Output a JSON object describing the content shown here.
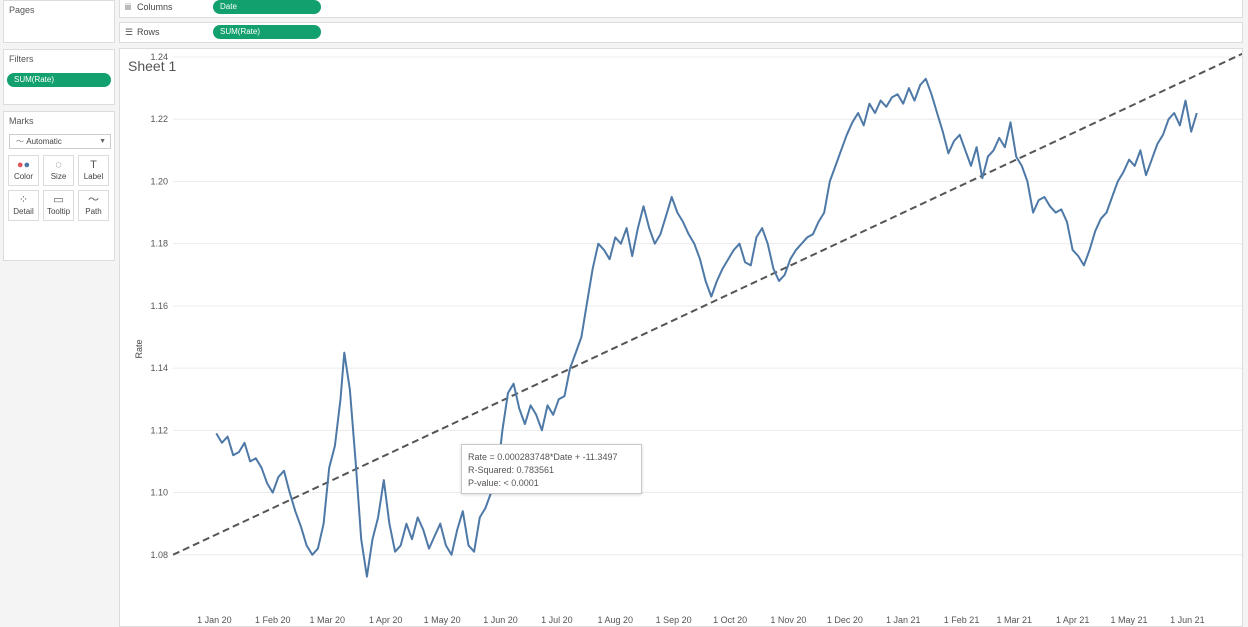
{
  "left": {
    "pages_label": "Pages",
    "filters_label": "Filters",
    "filter_pill": "SUM(Rate)",
    "marks_label": "Marks",
    "mark_type": "Automatic",
    "mark_buttons": [
      "Color",
      "Size",
      "Label",
      "Detail",
      "Tooltip",
      "Path"
    ]
  },
  "shelves": {
    "columns_label": "Columns",
    "columns_pill": "Date",
    "rows_label": "Rows",
    "rows_pill": "SUM(Rate)"
  },
  "sheet": {
    "title": "Sheet 1"
  },
  "tooltip": {
    "line1": "Rate = 0.000283748*Date + -11.3497",
    "line2": "R-Squared: 0.783561",
    "line3": "P-value: < 0.0001"
  },
  "colors": {
    "accent_pill": "#13a06f",
    "series": "#4e79a7",
    "trend": "#555555"
  },
  "chart_data": {
    "type": "line",
    "ylabel": "Rate",
    "xlabel": "",
    "ylim": [
      1.06,
      1.24
    ],
    "yticks": [
      1.08,
      1.1,
      1.12,
      1.14,
      1.16,
      1.18,
      1.2,
      1.22,
      1.24
    ],
    "ytick_labels": [
      "1.08",
      "1.10",
      "1.12",
      "1.14",
      "1.16",
      "1.18",
      "1.20",
      "1.22",
      "1.24"
    ],
    "xlim": [
      "2019-12-10",
      "2021-06-30"
    ],
    "xticks": [
      "2020-01-01",
      "2020-02-01",
      "2020-03-01",
      "2020-04-01",
      "2020-05-01",
      "2020-06-01",
      "2020-07-01",
      "2020-08-01",
      "2020-09-01",
      "2020-10-01",
      "2020-11-01",
      "2020-12-01",
      "2021-01-01",
      "2021-02-01",
      "2021-03-01",
      "2021-04-01",
      "2021-05-01",
      "2021-06-01"
    ],
    "xtick_labels": [
      "1 Jan 20",
      "1 Feb 20",
      "1 Mar 20",
      "1 Apr 20",
      "1 May 20",
      "1 Jun 20",
      "1 Jul 20",
      "1 Aug 20",
      "1 Sep 20",
      "1 Oct 20",
      "1 Nov 20",
      "1 Dec 20",
      "1 Jan 21",
      "1 Feb 21",
      "1 Mar 21",
      "1 Apr 21",
      "1 May 21",
      "1 Jun 21"
    ],
    "series": [
      {
        "x": [
          "2020-01-02",
          "2020-01-05",
          "2020-01-08",
          "2020-01-11",
          "2020-01-14",
          "2020-01-17",
          "2020-01-20",
          "2020-01-23",
          "2020-01-26",
          "2020-01-29",
          "2020-02-01",
          "2020-02-04",
          "2020-02-07",
          "2020-02-10",
          "2020-02-13",
          "2020-02-16",
          "2020-02-19",
          "2020-02-22",
          "2020-02-25",
          "2020-02-28",
          "2020-03-02",
          "2020-03-05",
          "2020-03-08",
          "2020-03-10",
          "2020-03-13",
          "2020-03-16",
          "2020-03-19",
          "2020-03-22",
          "2020-03-25",
          "2020-03-28",
          "2020-03-31",
          "2020-04-03",
          "2020-04-06",
          "2020-04-09",
          "2020-04-12",
          "2020-04-15",
          "2020-04-18",
          "2020-04-21",
          "2020-04-24",
          "2020-04-27",
          "2020-04-30",
          "2020-05-03",
          "2020-05-06",
          "2020-05-09",
          "2020-05-12",
          "2020-05-15",
          "2020-05-18",
          "2020-05-21",
          "2020-05-24",
          "2020-05-27",
          "2020-05-30",
          "2020-06-02",
          "2020-06-05",
          "2020-06-08",
          "2020-06-11",
          "2020-06-14",
          "2020-06-17",
          "2020-06-20",
          "2020-06-23",
          "2020-06-26",
          "2020-06-29",
          "2020-07-02",
          "2020-07-05",
          "2020-07-08",
          "2020-07-11",
          "2020-07-14",
          "2020-07-17",
          "2020-07-20",
          "2020-07-23",
          "2020-07-26",
          "2020-07-29",
          "2020-08-01",
          "2020-08-04",
          "2020-08-07",
          "2020-08-10",
          "2020-08-13",
          "2020-08-16",
          "2020-08-19",
          "2020-08-22",
          "2020-08-25",
          "2020-08-28",
          "2020-08-31",
          "2020-09-03",
          "2020-09-06",
          "2020-09-09",
          "2020-09-12",
          "2020-09-15",
          "2020-09-18",
          "2020-09-21",
          "2020-09-24",
          "2020-09-27",
          "2020-09-30",
          "2020-10-03",
          "2020-10-06",
          "2020-10-09",
          "2020-10-12",
          "2020-10-15",
          "2020-10-18",
          "2020-10-21",
          "2020-10-24",
          "2020-10-27",
          "2020-10-30",
          "2020-11-02",
          "2020-11-05",
          "2020-11-08",
          "2020-11-11",
          "2020-11-14",
          "2020-11-17",
          "2020-11-20",
          "2020-11-23",
          "2020-11-26",
          "2020-11-29",
          "2020-12-02",
          "2020-12-05",
          "2020-12-08",
          "2020-12-11",
          "2020-12-14",
          "2020-12-17",
          "2020-12-20",
          "2020-12-23",
          "2020-12-26",
          "2020-12-29",
          "2021-01-01",
          "2021-01-04",
          "2021-01-07",
          "2021-01-10",
          "2021-01-13",
          "2021-01-16",
          "2021-01-19",
          "2021-01-22",
          "2021-01-25",
          "2021-01-28",
          "2021-01-31",
          "2021-02-03",
          "2021-02-06",
          "2021-02-09",
          "2021-02-12",
          "2021-02-15",
          "2021-02-18",
          "2021-02-21",
          "2021-02-24",
          "2021-02-27",
          "2021-03-02",
          "2021-03-05",
          "2021-03-08",
          "2021-03-11",
          "2021-03-14",
          "2021-03-17",
          "2021-03-20",
          "2021-03-23",
          "2021-03-26",
          "2021-03-29",
          "2021-04-01",
          "2021-04-04",
          "2021-04-07",
          "2021-04-10",
          "2021-04-13",
          "2021-04-16",
          "2021-04-19",
          "2021-04-22",
          "2021-04-25",
          "2021-04-28",
          "2021-05-01",
          "2021-05-04",
          "2021-05-07",
          "2021-05-10",
          "2021-05-13",
          "2021-05-16",
          "2021-05-19",
          "2021-05-22",
          "2021-05-25",
          "2021-05-28",
          "2021-05-31",
          "2021-06-03",
          "2021-06-06"
        ],
        "y": [
          1.119,
          1.116,
          1.118,
          1.112,
          1.113,
          1.116,
          1.11,
          1.111,
          1.108,
          1.103,
          1.1,
          1.105,
          1.107,
          1.1,
          1.094,
          1.089,
          1.083,
          1.08,
          1.082,
          1.09,
          1.108,
          1.115,
          1.13,
          1.145,
          1.133,
          1.11,
          1.085,
          1.073,
          1.085,
          1.092,
          1.104,
          1.09,
          1.081,
          1.083,
          1.09,
          1.085,
          1.092,
          1.088,
          1.082,
          1.086,
          1.09,
          1.083,
          1.08,
          1.088,
          1.094,
          1.083,
          1.081,
          1.092,
          1.095,
          1.1,
          1.104,
          1.12,
          1.132,
          1.135,
          1.127,
          1.122,
          1.128,
          1.125,
          1.12,
          1.128,
          1.125,
          1.13,
          1.131,
          1.14,
          1.145,
          1.15,
          1.161,
          1.172,
          1.18,
          1.178,
          1.175,
          1.182,
          1.18,
          1.185,
          1.176,
          1.185,
          1.192,
          1.185,
          1.18,
          1.183,
          1.189,
          1.195,
          1.19,
          1.187,
          1.183,
          1.18,
          1.175,
          1.168,
          1.163,
          1.168,
          1.172,
          1.175,
          1.178,
          1.18,
          1.174,
          1.173,
          1.182,
          1.185,
          1.18,
          1.172,
          1.168,
          1.17,
          1.175,
          1.178,
          1.18,
          1.182,
          1.183,
          1.187,
          1.19,
          1.2,
          1.205,
          1.21,
          1.215,
          1.219,
          1.222,
          1.218,
          1.225,
          1.222,
          1.226,
          1.224,
          1.227,
          1.228,
          1.225,
          1.23,
          1.226,
          1.231,
          1.233,
          1.228,
          1.222,
          1.216,
          1.209,
          1.213,
          1.215,
          1.21,
          1.205,
          1.211,
          1.201,
          1.208,
          1.21,
          1.214,
          1.211,
          1.219,
          1.208,
          1.205,
          1.2,
          1.19,
          1.194,
          1.195,
          1.192,
          1.19,
          1.191,
          1.187,
          1.178,
          1.176,
          1.173,
          1.178,
          1.184,
          1.188,
          1.19,
          1.195,
          1.2,
          1.203,
          1.207,
          1.205,
          1.21,
          1.202,
          1.207,
          1.212,
          1.215,
          1.22,
          1.222,
          1.218,
          1.226,
          1.216,
          1.222
        ]
      }
    ],
    "trendline": {
      "style": "dashed",
      "equation": "Rate = 0.000283748*Date + -11.3497",
      "r_squared": 0.783561,
      "p_value": "< 0.0001",
      "start": {
        "x": "2019-12-10",
        "y": 1.08
      },
      "end": {
        "x": "2021-06-30",
        "y": 1.241
      }
    },
    "grid": true
  }
}
